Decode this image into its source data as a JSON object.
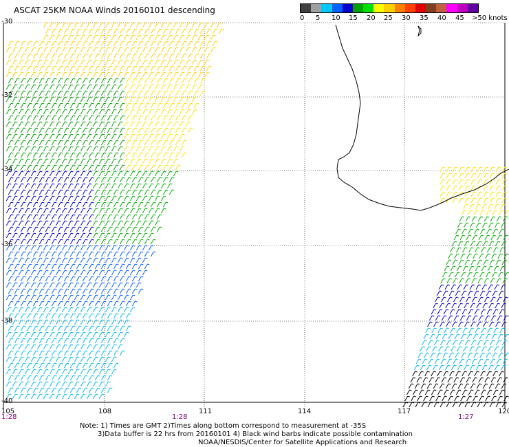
{
  "title": "ASCAT 25KM NOAA Winds 20160101 descending",
  "colorbar": {
    "labels": [
      "0",
      "5",
      "10",
      "15",
      "20",
      "25",
      "30",
      "35",
      "40",
      "45",
      ">50 knots"
    ],
    "colors": [
      "#404040",
      "#a0a0a0",
      "#00c8ff",
      "#0060ff",
      "#0000c8",
      "#00a000",
      "#00e000",
      "#ffff00",
      "#ffd000",
      "#ff8000",
      "#ff4000",
      "#e00000",
      "#804020",
      "#c06040",
      "#ff00ff",
      "#c000c0",
      "#6000a0"
    ]
  },
  "axes": {
    "lat_labels": [
      "-30",
      "-32",
      "-34",
      "-36",
      "-38",
      "-40"
    ],
    "lon_labels": [
      "105",
      "108",
      "111",
      "114",
      "117",
      "120"
    ]
  },
  "time_labels": [
    "1:28",
    "1:28",
    "1:27"
  ],
  "notes": {
    "line1": "Note: 1) Times are GMT 2)Times along bottom correspond to measurement at -35S",
    "line2": "3)Data buffer is 22 hrs from 20160101 4) Black wind barbs indicate possible contamination",
    "line3": "NOAA/NESDIS/Center for Satellite Applications and Research"
  }
}
